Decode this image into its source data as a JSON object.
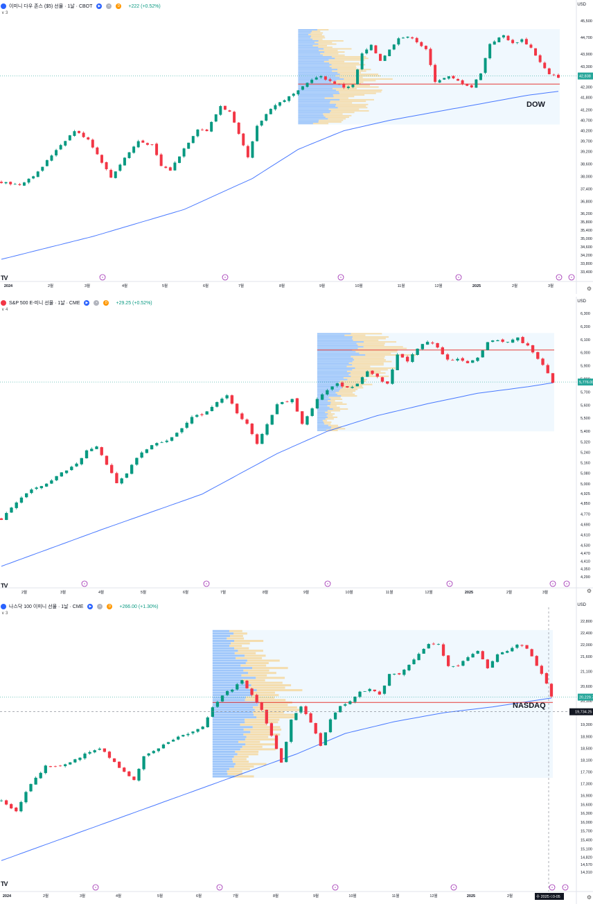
{
  "charts": [
    {
      "id": "dow",
      "header": {
        "symbol_icon": "YM",
        "title": "이미니 다우 존스 ($5) 선물 · 1날 · CBOT",
        "change": "+222 (+0.52%)",
        "sub": "∨ 3"
      },
      "currency": "USD",
      "watermark": "DOW",
      "last_price_label": "42,838",
      "accent_color": "#2962ff",
      "up_color": "#089981",
      "down_color": "#f23645",
      "time_axis": [
        "2024",
        "2월",
        "3월",
        "4월",
        "5월",
        "6월",
        "7월",
        "8월",
        "9월",
        "10월",
        "11월",
        "12월",
        "2025",
        "2월",
        "3월"
      ]
    },
    {
      "id": "spx",
      "header": {
        "symbol_icon": "ES",
        "title": "S&P 500 E-미니 선물 · 1날 · CME",
        "change": "+29.25 (+0.52%)",
        "sub": "∨ 4"
      },
      "currency": "USD",
      "watermark": "",
      "last_price_label": "5,776.00",
      "time_axis": [
        "2월",
        "3월",
        "4월",
        "5월",
        "6월",
        "7월",
        "8월",
        "9월",
        "10월",
        "11월",
        "12월",
        "2025",
        "2월",
        "3월"
      ]
    },
    {
      "id": "ndx",
      "header": {
        "symbol_icon": "NQ",
        "title": "나스닥 100 이미니 선물 · 1날 · CME",
        "change": "+266.00 (+1.30%)",
        "sub": "∨ 3"
      },
      "currency": "USD",
      "watermark": "NASDAQ",
      "last_price_label": "20,229.75",
      "crosshair_price_label": "19,734.25",
      "crosshair_date_label": "수 2025-03-05",
      "time_axis": [
        "2024",
        "2월",
        "3월",
        "4월",
        "5월",
        "6월",
        "7월",
        "8월",
        "9월",
        "10월",
        "11월",
        "12월",
        "2025",
        "2월",
        "3월"
      ]
    }
  ],
  "chart_data": [
    {
      "type": "candlestick",
      "title": "이미니 다우 존스 ($5) 선물 · 1날 · CBOT",
      "yticks": [
        33400,
        33800,
        34200,
        34600,
        35000,
        35400,
        35800,
        36200,
        36800,
        37400,
        38000,
        38600,
        39200,
        39700,
        40200,
        40700,
        41200,
        41800,
        42300,
        42800,
        43300,
        43900,
        44700,
        45500
      ],
      "ylim": [
        33400,
        45500
      ],
      "close_anchors": [
        [
          0,
          37700
        ],
        [
          4,
          37600
        ],
        [
          8,
          38200
        ],
        [
          12,
          39300
        ],
        [
          16,
          40200
        ],
        [
          19,
          39800
        ],
        [
          22,
          38700
        ],
        [
          24,
          37950
        ],
        [
          27,
          38900
        ],
        [
          30,
          39700
        ],
        [
          33,
          39500
        ],
        [
          35,
          38500
        ],
        [
          37,
          38300
        ],
        [
          40,
          39350
        ],
        [
          43,
          40300
        ],
        [
          45,
          40200
        ],
        [
          48,
          41400
        ],
        [
          50,
          41100
        ],
        [
          52,
          40000
        ],
        [
          54,
          38900
        ],
        [
          56,
          40400
        ],
        [
          59,
          41300
        ],
        [
          62,
          41700
        ],
        [
          65,
          42100
        ],
        [
          68,
          42700
        ],
        [
          70,
          42800
        ],
        [
          73,
          42500
        ],
        [
          75,
          42300
        ],
        [
          77,
          42400
        ],
        [
          79,
          43900
        ],
        [
          81,
          44300
        ],
        [
          83,
          43600
        ],
        [
          85,
          44100
        ],
        [
          87,
          44700
        ],
        [
          90,
          44700
        ],
        [
          93,
          44100
        ],
        [
          95,
          42600
        ],
        [
          98,
          42800
        ],
        [
          101,
          42500
        ],
        [
          103,
          42300
        ],
        [
          105,
          43000
        ],
        [
          107,
          44400
        ],
        [
          110,
          44800
        ],
        [
          112,
          44400
        ],
        [
          114,
          44600
        ],
        [
          116,
          44200
        ],
        [
          118,
          43500
        ],
        [
          120,
          42900
        ],
        [
          122,
          42800
        ]
      ],
      "ma_anchors": [
        [
          0,
          34000
        ],
        [
          20,
          35100
        ],
        [
          40,
          36400
        ],
        [
          55,
          37900
        ],
        [
          65,
          39300
        ],
        [
          75,
          40200
        ],
        [
          85,
          40700
        ],
        [
          95,
          41100
        ],
        [
          105,
          41500
        ],
        [
          115,
          41900
        ],
        [
          122,
          42100
        ]
      ],
      "volume_profile_price_range": [
        40500,
        45100
      ],
      "volume_profile_start_x": 65,
      "poc_level": 42450,
      "last": 42838
    },
    {
      "type": "candlestick",
      "title": "S&P 500 E-미니 선물 · 1날 · CME",
      "yticks": [
        4290,
        4350,
        4410,
        4470,
        4530,
        4610,
        4690,
        4770,
        4850,
        4925,
        5000,
        5080,
        5160,
        5240,
        5320,
        5400,
        5500,
        5600,
        5700,
        5800,
        5900,
        6000,
        6100,
        6200,
        6300
      ],
      "ylim": [
        4290,
        6300
      ],
      "close_anchors": [
        [
          0,
          4730
        ],
        [
          3,
          4860
        ],
        [
          6,
          4950
        ],
        [
          9,
          5000
        ],
        [
          12,
          5080
        ],
        [
          15,
          5150
        ],
        [
          17,
          5250
        ],
        [
          19,
          5280
        ],
        [
          21,
          5150
        ],
        [
          23,
          5010
        ],
        [
          25,
          5080
        ],
        [
          27,
          5200
        ],
        [
          30,
          5300
        ],
        [
          33,
          5330
        ],
        [
          36,
          5420
        ],
        [
          38,
          5510
        ],
        [
          40,
          5530
        ],
        [
          43,
          5620
        ],
        [
          45,
          5670
        ],
        [
          47,
          5540
        ],
        [
          49,
          5460
        ],
        [
          51,
          5300
        ],
        [
          53,
          5450
        ],
        [
          55,
          5600
        ],
        [
          58,
          5650
        ],
        [
          60,
          5450
        ],
        [
          63,
          5640
        ],
        [
          65,
          5720
        ],
        [
          67,
          5760
        ],
        [
          69,
          5730
        ],
        [
          71,
          5760
        ],
        [
          73,
          5850
        ],
        [
          75,
          5810
        ],
        [
          77,
          5760
        ],
        [
          79,
          5990
        ],
        [
          81,
          5930
        ],
        [
          83,
          6030
        ],
        [
          85,
          6090
        ],
        [
          87,
          6040
        ],
        [
          89,
          5950
        ],
        [
          91,
          5950
        ],
        [
          93,
          5920
        ],
        [
          95,
          5960
        ],
        [
          97,
          6080
        ],
        [
          99,
          6100
        ],
        [
          101,
          6080
        ],
        [
          103,
          6110
        ],
        [
          105,
          6050
        ],
        [
          107,
          5950
        ],
        [
          109,
          5850
        ],
        [
          110,
          5776
        ]
      ],
      "ma_anchors": [
        [
          0,
          4370
        ],
        [
          20,
          4650
        ],
        [
          40,
          4920
        ],
        [
          55,
          5230
        ],
        [
          65,
          5400
        ],
        [
          75,
          5520
        ],
        [
          85,
          5610
        ],
        [
          95,
          5690
        ],
        [
          105,
          5740
        ],
        [
          110,
          5770
        ]
      ],
      "volume_profile_price_range": [
        5400,
        6150
      ],
      "volume_profile_start_x": 63,
      "poc_level": 6020,
      "last": 5776
    },
    {
      "type": "candlestick",
      "title": "나스닥 100 이미니 선물 · 1날 · CME",
      "yticks": [
        14310,
        14570,
        14820,
        15100,
        15400,
        15700,
        16000,
        16300,
        16600,
        16900,
        17300,
        17700,
        18100,
        18500,
        18900,
        19300,
        19700,
        20100,
        20600,
        21100,
        21600,
        22000,
        22400,
        22800
      ],
      "ylim": [
        14310,
        22800
      ],
      "close_anchors": [
        [
          0,
          16700
        ],
        [
          3,
          16400
        ],
        [
          6,
          17300
        ],
        [
          9,
          17900
        ],
        [
          12,
          17900
        ],
        [
          15,
          18100
        ],
        [
          18,
          18400
        ],
        [
          20,
          18500
        ],
        [
          22,
          18200
        ],
        [
          25,
          17700
        ],
        [
          27,
          17450
        ],
        [
          29,
          18200
        ],
        [
          32,
          18500
        ],
        [
          35,
          18800
        ],
        [
          38,
          19000
        ],
        [
          41,
          19200
        ],
        [
          43,
          19900
        ],
        [
          45,
          20300
        ],
        [
          47,
          20500
        ],
        [
          49,
          20800
        ],
        [
          51,
          20300
        ],
        [
          53,
          19800
        ],
        [
          55,
          18900
        ],
        [
          57,
          18000
        ],
        [
          59,
          19500
        ],
        [
          61,
          19900
        ],
        [
          63,
          19400
        ],
        [
          65,
          18600
        ],
        [
          67,
          19500
        ],
        [
          69,
          19900
        ],
        [
          71,
          20100
        ],
        [
          73,
          20400
        ],
        [
          75,
          20500
        ],
        [
          77,
          20300
        ],
        [
          79,
          21000
        ],
        [
          81,
          21000
        ],
        [
          83,
          21300
        ],
        [
          85,
          21700
        ],
        [
          87,
          22000
        ],
        [
          89,
          22000
        ],
        [
          91,
          21300
        ],
        [
          93,
          21300
        ],
        [
          95,
          21600
        ],
        [
          97,
          21800
        ],
        [
          99,
          21200
        ],
        [
          101,
          21700
        ],
        [
          103,
          21800
        ],
        [
          105,
          22000
        ],
        [
          107,
          21900
        ],
        [
          109,
          21300
        ],
        [
          111,
          20700
        ],
        [
          112,
          20230
        ]
      ],
      "ma_anchors": [
        [
          0,
          14700
        ],
        [
          15,
          15600
        ],
        [
          30,
          16500
        ],
        [
          45,
          17400
        ],
        [
          60,
          18300
        ],
        [
          70,
          19000
        ],
        [
          80,
          19400
        ],
        [
          90,
          19700
        ],
        [
          100,
          19900
        ],
        [
          108,
          20100
        ],
        [
          112,
          20200
        ]
      ],
      "volume_profile_price_range": [
        17500,
        22500
      ],
      "volume_profile_start_x": 43,
      "poc_level": 20050,
      "last": 20229.75,
      "crosshair_level": 19734.25
    }
  ]
}
